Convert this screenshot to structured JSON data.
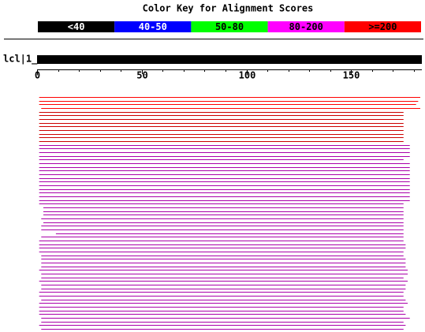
{
  "chart_data": {
    "type": "alignment",
    "title": "Color Key for Alignment Scores",
    "key": {
      "labels": [
        "<40",
        "40-50",
        "50-80",
        "80-200",
        ">=200"
      ],
      "colors": [
        "#000000",
        "#0000ff",
        "#00ff00",
        "#ff00ff",
        "#ff0000"
      ],
      "text_colors": [
        "#ffffff",
        "#ffffff",
        "#000000",
        "#000000",
        "#000000"
      ]
    },
    "query_label": "lcl|1_",
    "xlim": [
      0,
      183
    ],
    "xticks": [
      0,
      50,
      100,
      150
    ],
    "minor_xticks": [
      10,
      20,
      30,
      40,
      60,
      70,
      80,
      90,
      110,
      120,
      130,
      140,
      160,
      170,
      180
    ],
    "hits": {
      "starts": [
        1,
        1,
        1,
        2,
        1,
        1,
        1,
        1,
        1,
        1,
        1,
        1,
        1,
        1,
        1,
        1,
        1,
        1,
        1,
        1,
        1,
        1,
        1,
        1,
        1,
        1,
        1,
        1,
        1,
        1,
        3,
        3,
        3,
        2,
        3,
        2,
        2,
        9,
        2,
        1,
        1,
        1,
        1,
        2,
        2,
        2,
        2,
        1,
        2,
        2,
        1,
        2,
        2,
        1,
        1,
        2,
        1,
        1,
        1,
        1,
        2,
        2,
        1,
        2
      ],
      "ends": [
        183,
        182,
        181,
        183,
        175,
        175,
        175,
        175,
        175,
        175,
        175,
        175,
        175,
        178,
        178,
        178,
        178,
        175,
        178,
        178,
        178,
        178,
        178,
        178,
        178,
        178,
        178,
        178,
        178,
        175,
        175,
        175,
        175,
        175,
        175,
        175,
        175,
        175,
        175,
        175,
        176,
        176,
        175,
        175,
        176,
        176,
        176,
        177,
        177,
        175,
        177,
        176,
        176,
        175,
        175,
        176,
        177,
        175,
        175,
        176,
        178,
        175,
        176,
        175
      ],
      "colors": [
        "#ff0000",
        "#ff0000",
        "#ff0000",
        "#ff0000",
        "#cc0000",
        "#cc0000",
        "#cc0000",
        "#cc0000",
        "#cc0000",
        "#cc0000",
        "#cc0000",
        "#cc0000",
        "#cc0000",
        "#aa00aa",
        "#aa00aa",
        "#aa00aa",
        "#aa00aa",
        "#aa00aa",
        "#aa00aa",
        "#aa00aa",
        "#aa00aa",
        "#aa00aa",
        "#aa00aa",
        "#aa00aa",
        "#aa00aa",
        "#aa00aa",
        "#aa00aa",
        "#aa00aa",
        "#aa00aa",
        "#aa00aa",
        "#aa00aa",
        "#aa00aa",
        "#aa00aa",
        "#aa00aa",
        "#aa00aa",
        "#aa00aa",
        "#aa00aa",
        "#aa00aa",
        "#aa00aa",
        "#aa00aa",
        "#aa00aa",
        "#aa00aa",
        "#aa00aa",
        "#aa00aa",
        "#aa00aa",
        "#aa00aa",
        "#aa00aa",
        "#aa00aa",
        "#aa00aa",
        "#aa00aa",
        "#aa00aa",
        "#aa00aa",
        "#aa00aa",
        "#aa00aa",
        "#aa00aa",
        "#aa00aa",
        "#aa00aa",
        "#aa00aa",
        "#aa00aa",
        "#aa00aa",
        "#aa00aa",
        "#aa00aa",
        "#aa00aa",
        "#aa00aa"
      ]
    }
  }
}
